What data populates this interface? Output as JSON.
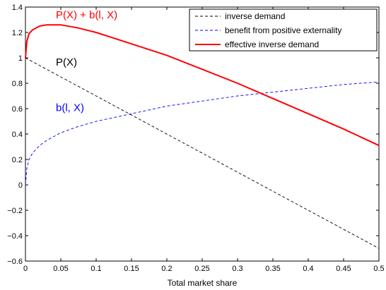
{
  "chart_data": {
    "type": "line",
    "xlabel": "Total market share",
    "ylabel": "",
    "xlim": [
      0,
      0.5
    ],
    "ylim": [
      -0.6,
      1.4
    ],
    "x_ticks": [
      0,
      0.05,
      0.1,
      0.15,
      0.2,
      0.25,
      0.3,
      0.35,
      0.4,
      0.45,
      0.5
    ],
    "x_tick_labels": [
      "0",
      "0.05",
      "0.1",
      "0.15",
      "0.2",
      "0.25",
      "0.3",
      "0.35",
      "0.4",
      "0.45",
      "0.5"
    ],
    "y_ticks": [
      -0.6,
      -0.4,
      -0.2,
      0,
      0.2,
      0.4,
      0.6,
      0.8,
      1,
      1.2,
      1.4
    ],
    "y_tick_labels": [
      "−0.6",
      "−0.4",
      "−0.2",
      "0",
      "0.2",
      "0.4",
      "0.6",
      "0.8",
      "1",
      "1.2",
      "1.4"
    ],
    "grid": false,
    "legend_position": "top-right",
    "series": [
      {
        "name": "inverse demand",
        "color": "#000000",
        "style": "dashed",
        "x": [
          0,
          0.5
        ],
        "y": [
          1.0,
          -0.5
        ]
      },
      {
        "name": "benefit from positive externality",
        "color": "#0000ff",
        "style": "dashed",
        "x": [
          0,
          0.002,
          0.005,
          0.01,
          0.02,
          0.03,
          0.05,
          0.075,
          0.1,
          0.125,
          0.15,
          0.175,
          0.2,
          0.25,
          0.3,
          0.35,
          0.4,
          0.45,
          0.5
        ],
        "y": [
          0,
          0.13,
          0.2,
          0.25,
          0.31,
          0.35,
          0.41,
          0.46,
          0.5,
          0.53,
          0.56,
          0.59,
          0.62,
          0.66,
          0.7,
          0.73,
          0.76,
          0.79,
          0.81
        ]
      },
      {
        "name": "effective inverse demand",
        "color": "#ff0000",
        "style": "solid",
        "x": [
          0,
          0.002,
          0.005,
          0.01,
          0.02,
          0.03,
          0.05,
          0.075,
          0.1,
          0.125,
          0.15,
          0.175,
          0.2,
          0.25,
          0.3,
          0.35,
          0.4,
          0.45,
          0.5
        ],
        "y": [
          1.0,
          1.13,
          1.19,
          1.22,
          1.25,
          1.26,
          1.26,
          1.235,
          1.2,
          1.155,
          1.11,
          1.065,
          1.02,
          0.91,
          0.8,
          0.68,
          0.56,
          0.44,
          0.31
        ]
      }
    ],
    "annotations": [
      {
        "text": "P(X) + b(l, X)",
        "x": 0.043,
        "y": 1.31,
        "color": "#ff0000"
      },
      {
        "text": "P(X)",
        "x": 0.043,
        "y": 0.94,
        "color": "#000000"
      },
      {
        "text": "b(l, X)",
        "x": 0.043,
        "y": 0.58,
        "color": "#0000ff"
      }
    ]
  }
}
